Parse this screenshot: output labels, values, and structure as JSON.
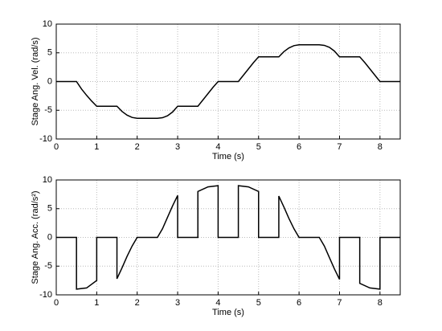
{
  "chart_data": [
    {
      "type": "line",
      "xlabel": "Time (s)",
      "ylabel": "Stage Ang. Vel. (rad/s)",
      "xlim": [
        0,
        8.5
      ],
      "ylim": [
        -10,
        10
      ],
      "xticks": [
        0,
        1,
        2,
        3,
        4,
        5,
        6,
        7,
        8
      ],
      "yticks": [
        -10,
        -5,
        0,
        5,
        10
      ],
      "grid": true,
      "series": [
        {
          "color": "#000000",
          "x": [
            0,
            0.5,
            0.625,
            0.75,
            0.875,
            1.0,
            1.5,
            1.625,
            1.75,
            1.875,
            2.0,
            2.5,
            2.625,
            2.75,
            2.875,
            3.0,
            3.5,
            3.625,
            3.75,
            3.875,
            4.0,
            4.5,
            4.625,
            4.75,
            4.875,
            5.0,
            5.5,
            5.625,
            5.75,
            5.875,
            6.0,
            6.5,
            6.625,
            6.75,
            6.875,
            7.0,
            7.5,
            7.625,
            7.75,
            7.875,
            8.0,
            8.5
          ],
          "values": [
            0,
            0,
            -1.3,
            -2.4,
            -3.4,
            -4.3,
            -4.3,
            -5.2,
            -5.85,
            -6.25,
            -6.4,
            -6.4,
            -6.3,
            -5.95,
            -5.3,
            -4.3,
            -4.3,
            -3.2,
            -2.1,
            -1.0,
            0,
            0,
            1.1,
            2.2,
            3.3,
            4.3,
            4.3,
            5.2,
            5.85,
            6.25,
            6.4,
            6.4,
            6.3,
            5.95,
            5.3,
            4.3,
            4.3,
            3.3,
            2.2,
            1.1,
            0,
            0
          ]
        }
      ]
    },
    {
      "type": "line",
      "xlabel": "Time (s)",
      "ylabel": "Stage Ang. Acc. (rad/s²)",
      "xlim": [
        0,
        8.5
      ],
      "ylim": [
        -10,
        10
      ],
      "xticks": [
        0,
        1,
        2,
        3,
        4,
        5,
        6,
        7,
        8
      ],
      "yticks": [
        -10,
        -5,
        0,
        5,
        10
      ],
      "grid": true,
      "series": [
        {
          "color": "#000000",
          "x": [
            0,
            0.5,
            0.5,
            0.75,
            1.0,
            1.0,
            1.5,
            1.5,
            1.625,
            1.75,
            1.875,
            2.0,
            2.5,
            2.625,
            2.75,
            2.875,
            3.0,
            3.0,
            3.5,
            3.5,
            3.75,
            4.0,
            4.0,
            4.5,
            4.5,
            4.75,
            5.0,
            5.0,
            5.5,
            5.5,
            5.625,
            5.75,
            5.875,
            6.0,
            6.5,
            6.625,
            6.75,
            6.875,
            7.0,
            7.0,
            7.5,
            7.5,
            7.75,
            8.0,
            8.0,
            8.5
          ],
          "values": [
            0,
            0,
            -9,
            -8.8,
            -7.5,
            0,
            0,
            -7.2,
            -5.3,
            -3.3,
            -1.5,
            0,
            0,
            1.5,
            3.5,
            5.5,
            7.3,
            0,
            0,
            8,
            8.8,
            9,
            0,
            0,
            9,
            8.8,
            8,
            0,
            0,
            7.2,
            5.3,
            3.3,
            1.5,
            0,
            0,
            -1.5,
            -3.5,
            -5.5,
            -7.3,
            0,
            0,
            -8,
            -8.8,
            -9,
            0,
            0
          ]
        }
      ]
    }
  ]
}
